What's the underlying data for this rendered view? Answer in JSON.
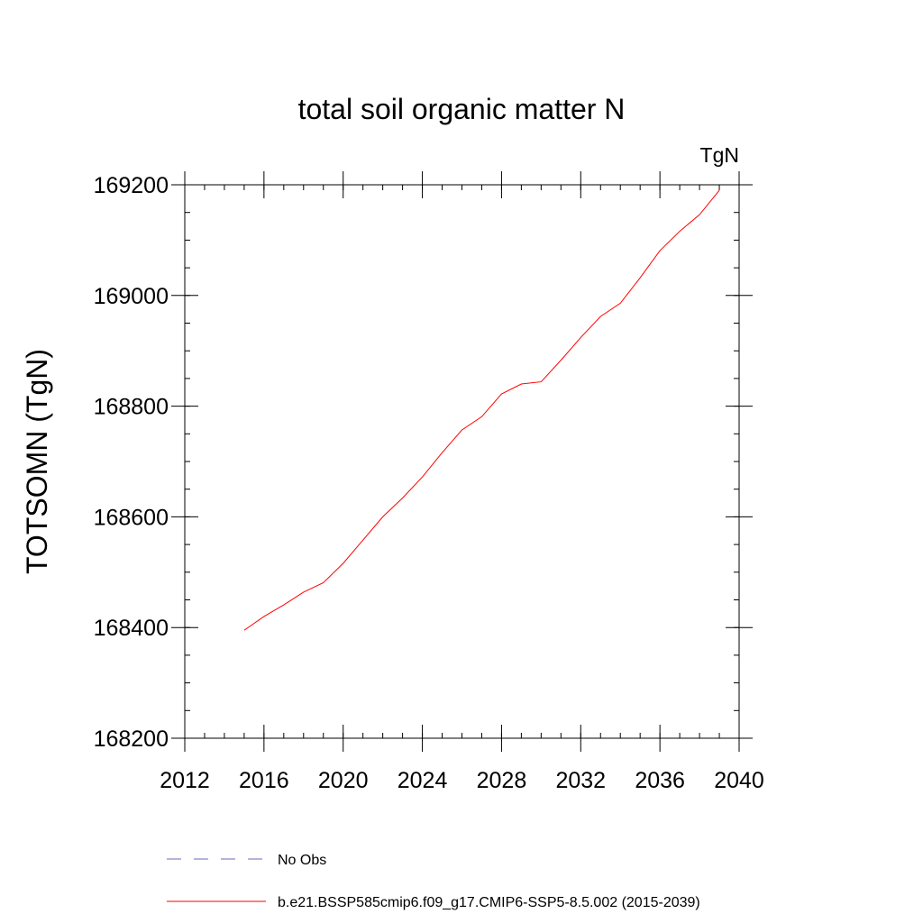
{
  "chart_data": {
    "type": "line",
    "title": "total soil organic matter N",
    "units_label": "TgN",
    "xlabel": "",
    "ylabel": "TOTSOMN  (TgN)",
    "xlim": [
      2012,
      2040
    ],
    "ylim": [
      168200,
      169200
    ],
    "x_ticks": [
      2012,
      2016,
      2020,
      2024,
      2028,
      2032,
      2036,
      2040
    ],
    "y_ticks": [
      168200,
      168400,
      168600,
      168800,
      169000,
      169200
    ],
    "x_minor_step": 1,
    "y_minor_step": 50,
    "series": [
      {
        "name": "b.e21.BSSP585cmip6.f09_g17.CMIP6-SSP5-8.5.002 (2015-2039)",
        "color": "#ff0000",
        "style": "solid",
        "x": [
          2015,
          2016,
          2017,
          2018,
          2019,
          2020,
          2021,
          2022,
          2023,
          2024,
          2025,
          2026,
          2027,
          2028,
          2029,
          2030,
          2031,
          2032,
          2033,
          2034,
          2035,
          2036,
          2037,
          2038,
          2039
        ],
        "y": [
          168395,
          168420,
          168441,
          168464,
          168481,
          168516,
          168558,
          168600,
          168634,
          168672,
          168716,
          168757,
          168781,
          168822,
          168840,
          168844,
          168883,
          168924,
          168962,
          168986,
          169032,
          169081,
          169116,
          169146,
          169190
        ]
      }
    ],
    "legend": [
      {
        "label": "No Obs",
        "color": "#6a6ab8",
        "style": "dashed"
      },
      {
        "label": "b.e21.BSSP585cmip6.f09_g17.CMIP6-SSP5-8.5.002 (2015-2039)",
        "color": "#ff0000",
        "style": "solid"
      }
    ],
    "legend_position": "bottom"
  }
}
